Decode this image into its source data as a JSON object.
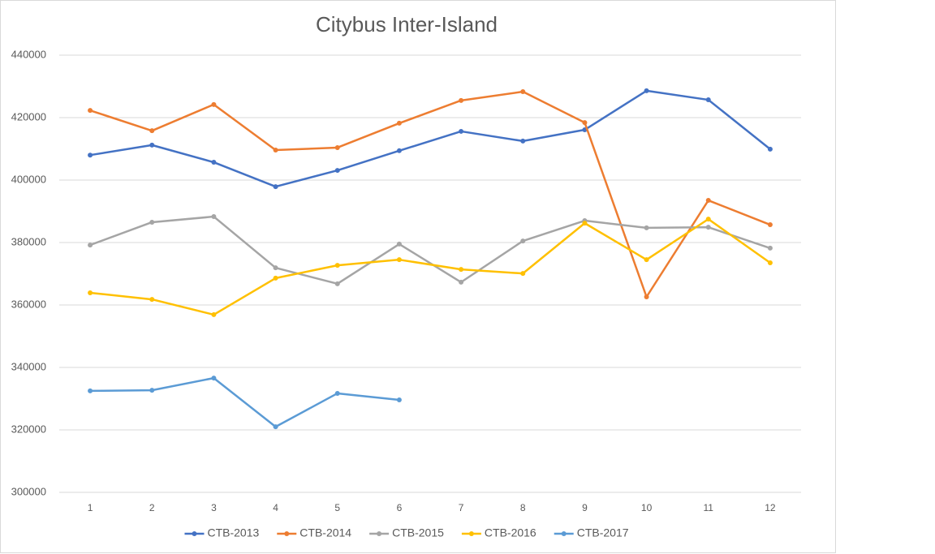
{
  "chart_data": {
    "type": "line",
    "title": "Citybus Inter-Island",
    "categories": [
      "1",
      "2",
      "3",
      "4",
      "5",
      "6",
      "7",
      "8",
      "9",
      "10",
      "11",
      "12"
    ],
    "series": [
      {
        "name": "CTB-2013",
        "color": "#4472c4",
        "values": [
          408000,
          411200,
          405700,
          397900,
          403100,
          409400,
          415600,
          412500,
          416100,
          428600,
          425700,
          409900
        ]
      },
      {
        "name": "CTB-2014",
        "color": "#ed7d31",
        "values": [
          422300,
          415800,
          424200,
          409600,
          410400,
          418200,
          425500,
          428300,
          418400,
          362600,
          393500,
          385700
        ]
      },
      {
        "name": "CTB-2015",
        "color": "#a5a5a5",
        "values": [
          379200,
          386500,
          388300,
          371900,
          366800,
          379500,
          367300,
          380500,
          387000,
          384700,
          384900,
          378200
        ]
      },
      {
        "name": "CTB-2016",
        "color": "#ffc000",
        "values": [
          363900,
          361800,
          356900,
          368600,
          372700,
          374500,
          371400,
          370100,
          386200,
          374500,
          387500,
          373500
        ]
      },
      {
        "name": "CTB-2017",
        "color": "#5b9bd5",
        "values": [
          332500,
          332700,
          336600,
          321000,
          331700,
          329600,
          null,
          null,
          null,
          null,
          null,
          null
        ]
      }
    ],
    "ylim": [
      300000,
      440000
    ],
    "yticks": [
      300000,
      320000,
      340000,
      360000,
      380000,
      400000,
      420000,
      440000
    ],
    "grid": true,
    "legend": "bottom"
  }
}
